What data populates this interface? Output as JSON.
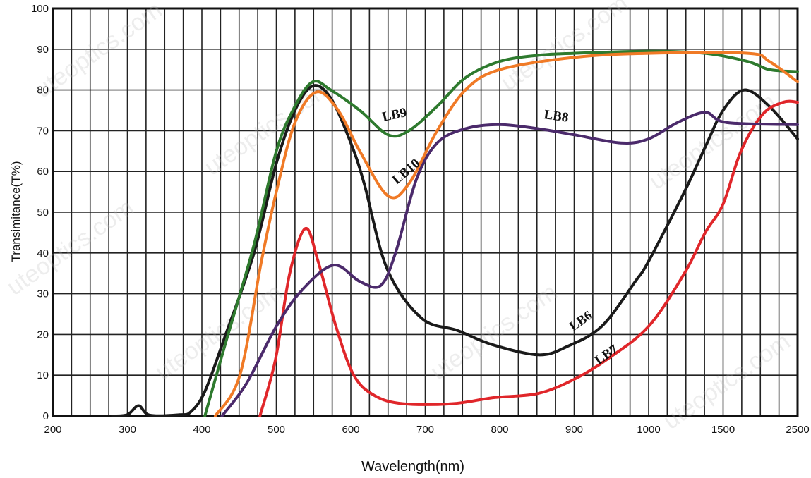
{
  "chart_data": {
    "type": "line",
    "title": "",
    "xlabel": "Wavelength(nm)",
    "ylabel": "Transimitance(T%)",
    "x_ticks": [
      "200",
      "300",
      "400",
      "500",
      "600",
      "700",
      "800",
      "900",
      "1000",
      "1500",
      "2500"
    ],
    "x_tick_values": [
      200,
      300,
      400,
      500,
      600,
      700,
      800,
      900,
      1000,
      1500,
      2500
    ],
    "x_scale": "piecewise-equal-spacing between tick labels",
    "y_ticks": [
      "0",
      "10",
      "20",
      "30",
      "40",
      "50",
      "60",
      "70",
      "80",
      "90",
      "100"
    ],
    "ylim": [
      0,
      100
    ],
    "grid": true,
    "series": [
      {
        "name": "LB6",
        "color": "#1a1a1a",
        "x": [
          280,
          300,
          315,
          330,
          370,
          385,
          404,
          432,
          470,
          500,
          525,
          549,
          573,
          600,
          618,
          649,
          695,
          743,
          790,
          852,
          890,
          937,
          982,
          1000,
          1240,
          1380,
          1500,
          1785,
          2120,
          2500
        ],
        "y": [
          0,
          0.3,
          2.5,
          0.2,
          0.3,
          1,
          6,
          20,
          40,
          62,
          75,
          81,
          78,
          67,
          57,
          36,
          24,
          21,
          17.5,
          15,
          17,
          22,
          33,
          38,
          55,
          66,
          75,
          80,
          76,
          68
        ]
      },
      {
        "name": "LB7",
        "color": "#e0262a",
        "x": [
          478,
          499,
          518,
          539,
          556,
          580,
          604,
          632,
          670,
          736,
          792,
          851,
          900,
          945,
          1000,
          1240,
          1380,
          1500,
          1740,
          2030,
          2310,
          2500
        ],
        "y": [
          0,
          14,
          35,
          46,
          38,
          22,
          10,
          5,
          3,
          3,
          4.5,
          5.5,
          9,
          14,
          22,
          35,
          45,
          52,
          65,
          74,
          77,
          77
        ]
      },
      {
        "name": "LB8",
        "color": "#4b2a6b",
        "x": [
          427,
          460,
          500,
          535,
          577,
          612,
          640,
          660,
          688,
          716,
          754,
          800,
          851,
          900,
          963,
          1000,
          1194,
          1380,
          1550,
          2500
        ],
        "y": [
          0,
          8,
          22,
          31,
          37,
          33,
          32,
          40,
          58,
          67,
          70.5,
          71.5,
          70.5,
          69,
          67,
          68,
          72,
          74.5,
          72,
          71.5
        ]
      },
      {
        "name": "LB9",
        "color": "#2e7a2e",
        "x": [
          404,
          432,
          470,
          500,
          525,
          549,
          573,
          612,
          650,
          678,
          716,
          754,
          800,
          851,
          900,
          1000,
          1380,
          1830,
          2120,
          2500
        ],
        "y": [
          0,
          18,
          42,
          65,
          76,
          82,
          80,
          75,
          69,
          70,
          76,
          83,
          87,
          88.5,
          89,
          89.5,
          89,
          87,
          85,
          84.5
        ]
      },
      {
        "name": "LB10",
        "color": "#f07a26",
        "x": [
          418,
          451,
          480,
          500,
          525,
          554,
          583,
          612,
          650,
          678,
          716,
          754,
          800,
          900,
          1000,
          1830,
          2120,
          2500
        ],
        "y": [
          0,
          10,
          38,
          55,
          72,
          79.5,
          75,
          65,
          54,
          57,
          70,
          80,
          85,
          88,
          89,
          89,
          87,
          82
        ]
      }
    ],
    "annotations": [
      "LB9",
      "LB8",
      "LB10",
      "LB6",
      "LB7"
    ]
  },
  "watermark": "uteoptics.com"
}
